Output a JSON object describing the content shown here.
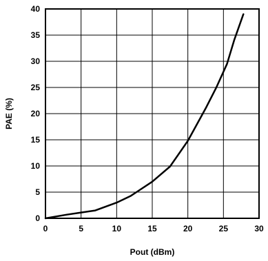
{
  "chart_data": {
    "type": "line",
    "title": "",
    "xlabel": "Pout (dBm)",
    "ylabel": "PAE (%)",
    "xlim": [
      0,
      30
    ],
    "ylim": [
      0,
      40
    ],
    "xticks": [
      "0",
      "5",
      "10",
      "15",
      "20",
      "25",
      "30"
    ],
    "yticks": [
      "0",
      "5",
      "10",
      "15",
      "20",
      "25",
      "30",
      "35",
      "40"
    ],
    "grid": true,
    "series": [
      {
        "x": [
          0,
          3,
          5,
          7,
          10,
          12,
          13,
          15,
          17.5,
          20,
          22.5,
          24,
          25.5,
          26.5,
          27.8
        ],
        "y": [
          0,
          0.7,
          1.1,
          1.5,
          3,
          4.3,
          5.2,
          7,
          9.9,
          14.8,
          21,
          25,
          29.5,
          34,
          39
        ]
      }
    ]
  }
}
